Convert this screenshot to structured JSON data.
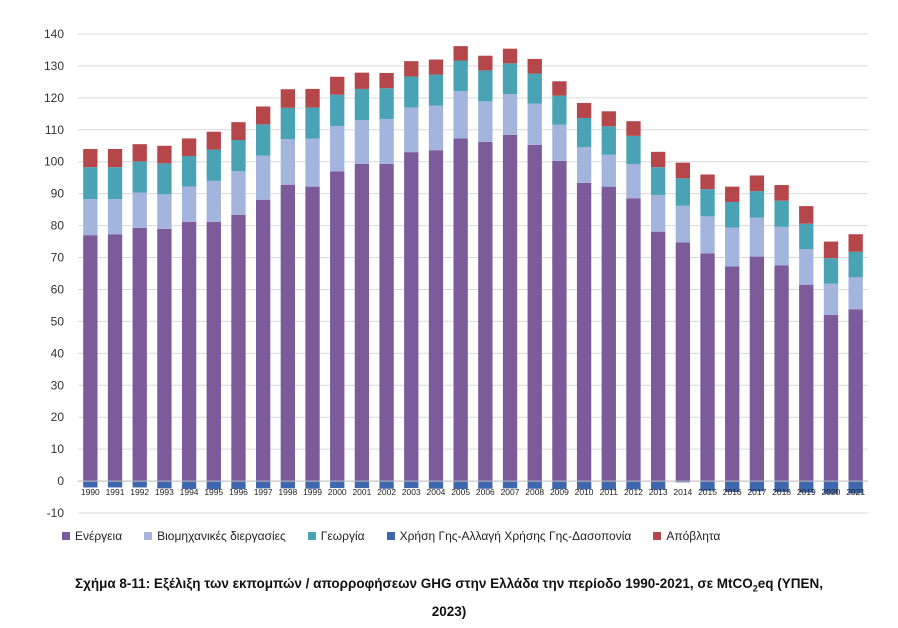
{
  "chart_data": {
    "type": "bar",
    "stacked": true,
    "categories": [
      "1990",
      "1991",
      "1992",
      "1993",
      "1994",
      "1995",
      "1996",
      "1997",
      "1998",
      "1999",
      "2000",
      "2001",
      "2002",
      "2003",
      "2004",
      "2005",
      "2006",
      "2007",
      "2008",
      "2009",
      "2010",
      "2011",
      "2012",
      "2013",
      "2014",
      "2015",
      "2016",
      "2017",
      "2018",
      "2019",
      "2020",
      "2021"
    ],
    "series": [
      {
        "name": "Ενέργεια",
        "color": "#7b5b9a",
        "values": [
          77,
          77.3,
          79.3,
          79,
          81.2,
          81.2,
          83.4,
          88.1,
          92.8,
          92.2,
          97,
          99.3,
          99.3,
          103,
          103.6,
          107.3,
          106.2,
          108.4,
          105.3,
          100.3,
          93.4,
          92.2,
          88.5,
          78.1,
          74.7,
          71.3,
          67.2,
          70.3,
          67.5,
          61.5,
          52,
          53.8
        ]
      },
      {
        "name": "Βιομηχανικές διεργασίες",
        "color": "#a3b4dd",
        "values": [
          11.3,
          11,
          11,
          10.8,
          11,
          12.8,
          13.6,
          13.8,
          14.3,
          15,
          14.2,
          13.7,
          14.1,
          14,
          14,
          14.8,
          12.7,
          12.8,
          12.9,
          11.3,
          11.2,
          10,
          10.8,
          11.5,
          11.5,
          11.6,
          12.2,
          12.2,
          12.1,
          11.1,
          9.8,
          10
        ]
      },
      {
        "name": "Γεωργία",
        "color": "#4aa3b5",
        "values": [
          10,
          10,
          9.8,
          9.7,
          9.6,
          9.8,
          9.8,
          9.8,
          9.8,
          9.8,
          9.8,
          9.8,
          9.6,
          9.7,
          9.7,
          9.6,
          9.7,
          9.6,
          9.4,
          9.1,
          9.1,
          8.9,
          8.8,
          8.7,
          8.6,
          8.5,
          8,
          8.3,
          8.2,
          8,
          8,
          8
        ]
      },
      {
        "name": "Χρήση Γης-Αλλαγή Χρήσης Γης-Δασοπονία",
        "color": "#3f67ad",
        "values": [
          -2,
          -2,
          -2,
          -2.3,
          -2.5,
          -2.6,
          -2.5,
          -2.3,
          -2.3,
          -2.4,
          -2.2,
          -2.2,
          -2.4,
          -2.2,
          -2.4,
          -2.5,
          -2.4,
          -2.3,
          -2.4,
          -2.5,
          -2.6,
          -2.7,
          -2.6,
          -2.7,
          -0.4,
          -3,
          -3.4,
          -3.2,
          -3.4,
          -3.6,
          -4,
          -3.9
        ]
      },
      {
        "name": "Απόβλητα",
        "color": "#b5474b",
        "values": [
          5.7,
          5.7,
          5.4,
          5.5,
          5.5,
          5.6,
          5.6,
          5.6,
          5.8,
          5.8,
          5.6,
          5.1,
          4.8,
          4.8,
          4.7,
          4.5,
          4.6,
          4.6,
          4.6,
          4.5,
          4.7,
          4.7,
          4.6,
          4.8,
          4.9,
          4.6,
          4.8,
          4.9,
          4.9,
          5.5,
          5.2,
          5.5
        ]
      }
    ],
    "ylim": [
      -10,
      140
    ],
    "yticks": [
      -10,
      0,
      10,
      20,
      30,
      40,
      50,
      60,
      70,
      80,
      90,
      100,
      110,
      120,
      130,
      140
    ],
    "grid": true,
    "legend_position": "bottom"
  },
  "caption": {
    "line1_prefix": "Σχήμα 8-11: Εξέλιξη των εκπομπών / απορροφήσεων GHG στην Ελλάδα την περίοδο 1990-2021, σε MtCO",
    "line1_sub": "2",
    "line1_suffix": "eq (ΥΠΕΝ,",
    "line2": "2023)"
  }
}
